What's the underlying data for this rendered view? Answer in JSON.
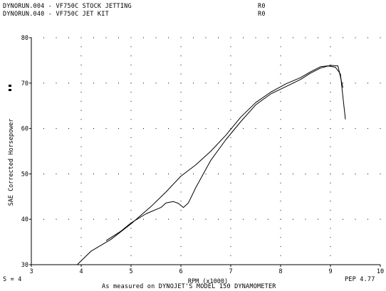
{
  "header": {
    "runs": [
      {
        "name": "DYNORUN.004 - VF750C STOCK JETTING",
        "tag": "R0"
      },
      {
        "name": "DYNORUN.040 - VF750C JET KIT",
        "tag": "R0"
      }
    ]
  },
  "footer": {
    "s_label": "S = 4",
    "pep_label": "PEP 4.77",
    "measured_note": "As measured on DYNOJET'S MODEL 150 DYNAMOMETER"
  },
  "colors": {
    "line": "#000000",
    "grid_dot": "#000000",
    "background": "#ffffff"
  },
  "chart_data": {
    "type": "line",
    "title": "",
    "xlabel": "RPM (x1000)",
    "ylabel": "SAE Corrected Horsepower",
    "xlim": [
      3,
      10
    ],
    "ylim": [
      30,
      80
    ],
    "x_ticks": [
      "3",
      "4",
      "5",
      "6",
      "7",
      "8",
      "9",
      "10"
    ],
    "y_ticks": [
      "30",
      "40",
      "50",
      "60",
      "70",
      "80"
    ],
    "grid": "dotted",
    "series": [
      {
        "name": "DYNORUN.040 - VF750C JET KIT",
        "points": [
          [
            3.92,
            30.0
          ],
          [
            4.2,
            33.0
          ],
          [
            4.6,
            35.6
          ],
          [
            5.0,
            39.0
          ],
          [
            5.4,
            42.8
          ],
          [
            5.7,
            46.0
          ],
          [
            6.0,
            49.5
          ],
          [
            6.3,
            52.0
          ],
          [
            6.6,
            55.0
          ],
          [
            6.9,
            58.5
          ],
          [
            7.2,
            62.5
          ],
          [
            7.5,
            65.7
          ],
          [
            7.8,
            68.0
          ],
          [
            8.1,
            69.8
          ],
          [
            8.4,
            71.2
          ],
          [
            8.6,
            72.5
          ],
          [
            8.8,
            73.6
          ],
          [
            8.95,
            73.8
          ],
          [
            9.1,
            73.5
          ],
          [
            9.2,
            72.0
          ],
          [
            9.3,
            62.0
          ]
        ]
      },
      {
        "name": "DYNORUN.004 - VF750C STOCK JETTING",
        "points": [
          [
            4.5,
            35.3
          ],
          [
            4.8,
            37.4
          ],
          [
            5.0,
            39.2
          ],
          [
            5.3,
            41.2
          ],
          [
            5.6,
            42.6
          ],
          [
            5.7,
            43.6
          ],
          [
            5.85,
            43.9
          ],
          [
            5.95,
            43.5
          ],
          [
            6.05,
            42.6
          ],
          [
            6.15,
            43.6
          ],
          [
            6.3,
            47.0
          ],
          [
            6.6,
            53.0
          ],
          [
            6.9,
            57.5
          ],
          [
            7.2,
            61.5
          ],
          [
            7.5,
            65.2
          ],
          [
            7.8,
            67.6
          ],
          [
            8.1,
            69.2
          ],
          [
            8.4,
            70.8
          ],
          [
            8.6,
            72.2
          ],
          [
            8.8,
            73.3
          ],
          [
            9.0,
            73.9
          ],
          [
            9.15,
            73.8
          ],
          [
            9.25,
            69.0
          ]
        ]
      }
    ]
  }
}
